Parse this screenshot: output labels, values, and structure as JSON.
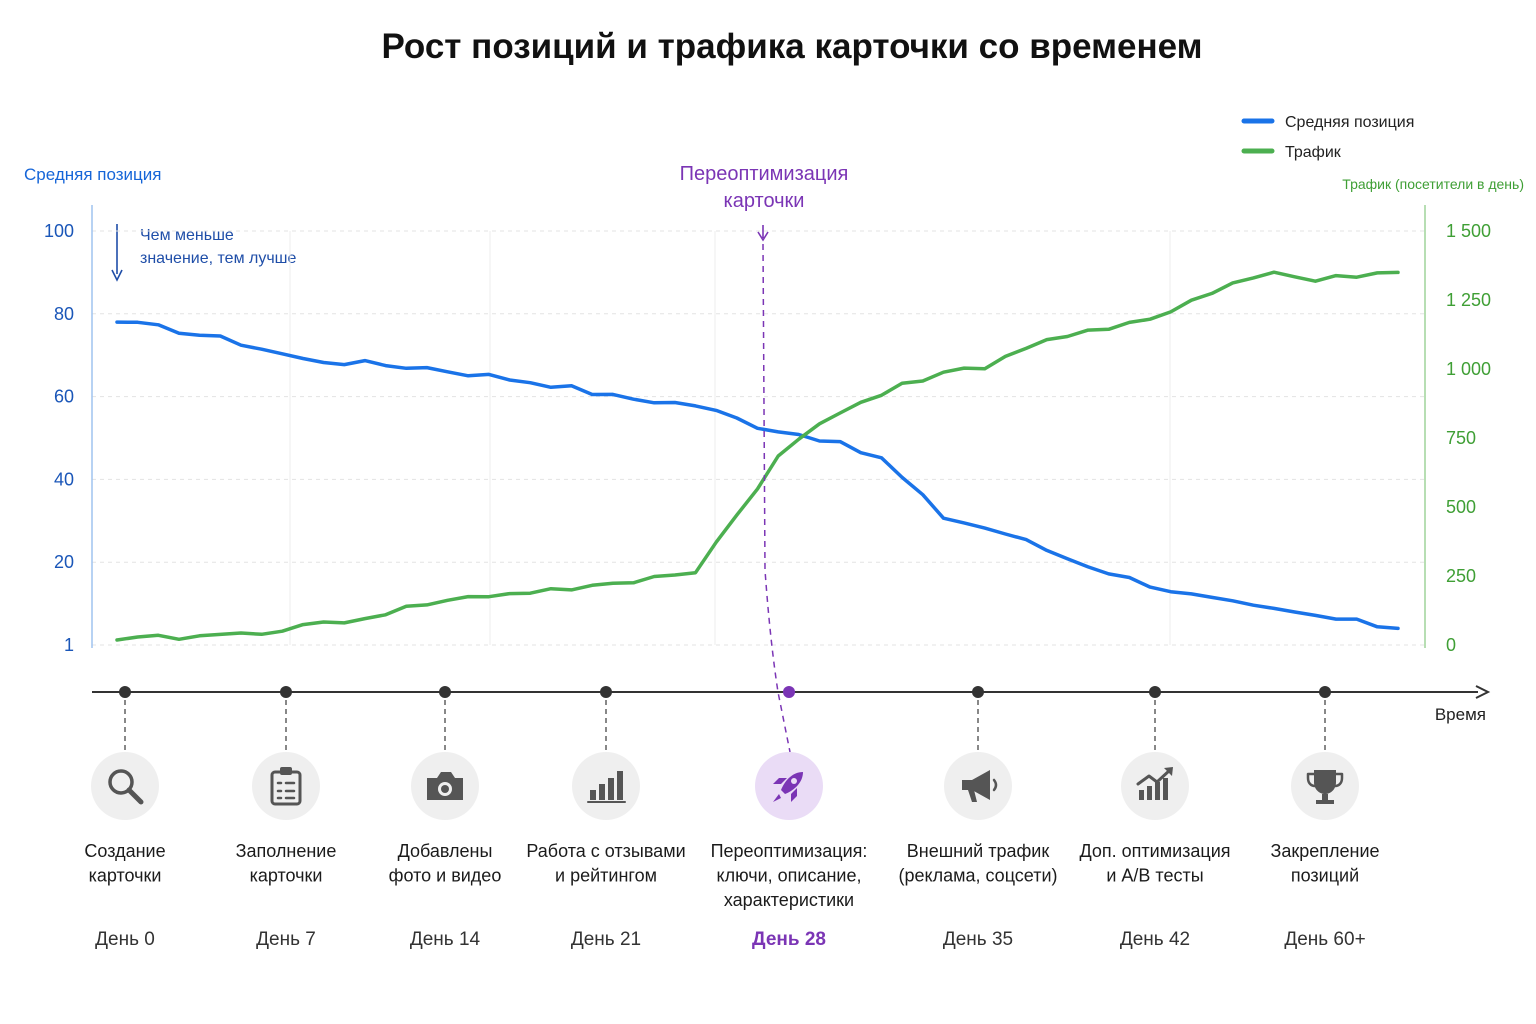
{
  "title": "Рост позиций и трафика карточки со временем",
  "colors": {
    "position": "#1a73e8",
    "traffic": "#4caf50",
    "highlight": "#7b35b5",
    "axis_left": "#1565d8",
    "axis_right": "#3f9f35",
    "timeline": "#333333",
    "icon_bg": "#efefef",
    "icon_bg_highlight": "#eadcf6",
    "icon": "#555555"
  },
  "chart_data": {
    "type": "line",
    "title": "Рост позиций и трафика карточки со временем",
    "ylabel": "Средняя позиция",
    "y2label": "Трафик (посетители в день)",
    "xlabel": "Время",
    "ylim": [
      0,
      100
    ],
    "y2lim": [
      0,
      1500
    ],
    "yticks": [
      {
        "v": 0,
        "label": "1"
      },
      {
        "v": 20,
        "label": "20"
      },
      {
        "v": 40,
        "label": "40"
      },
      {
        "v": 60,
        "label": "60"
      },
      {
        "v": 80,
        "label": "80"
      },
      {
        "v": 100,
        "label": "100"
      }
    ],
    "y2ticks": [
      {
        "v": 0,
        "label": "0"
      },
      {
        "v": 250,
        "label": "250"
      },
      {
        "v": 500,
        "label": "500"
      },
      {
        "v": 750,
        "label": "750"
      },
      {
        "v": 1000,
        "label": "1 000"
      },
      {
        "v": 1250,
        "label": "1 250"
      },
      {
        "v": 1500,
        "label": "1 500"
      }
    ],
    "legend": {
      "placement": "top-right"
    },
    "grid": true,
    "series": [
      {
        "name": "Средняя позиция",
        "axis": "left",
        "x": [
          0,
          3,
          6,
          9,
          12,
          15,
          18,
          21,
          24,
          28,
          31,
          34,
          37,
          40,
          43,
          46,
          49,
          52,
          55,
          58,
          62
        ],
        "values": [
          78,
          76,
          73,
          69,
          68,
          67,
          65,
          63,
          60,
          58,
          53,
          50,
          45,
          31,
          27,
          21,
          16,
          12,
          9,
          7,
          4
        ]
      },
      {
        "name": "Трафик",
        "axis": "right",
        "x": [
          0,
          3,
          6,
          9,
          12,
          15,
          18,
          21,
          24,
          28,
          30,
          32,
          34,
          36,
          38,
          40,
          42,
          44,
          46,
          48,
          50,
          52,
          54,
          56,
          58,
          60,
          62
        ],
        "values": [
          18,
          28,
          40,
          65,
          100,
          150,
          180,
          200,
          215,
          270,
          470,
          680,
          800,
          880,
          950,
          980,
          1010,
          1080,
          1120,
          1140,
          1180,
          1250,
          1310,
          1350,
          1320,
          1340,
          1350
        ]
      }
    ],
    "annotation": {
      "x": 28,
      "text": [
        "Переоптимизация",
        "карточки"
      ]
    }
  },
  "note": {
    "line1": "Чем меньше",
    "line2": "значение, тем лучше"
  },
  "milestones": [
    {
      "icon": "search-icon",
      "label": [
        "Создание",
        "карточки"
      ],
      "day": "День 0"
    },
    {
      "icon": "clipboard-icon",
      "label": [
        "Заполнение",
        "карточки"
      ],
      "day": "День 7"
    },
    {
      "icon": "camera-icon",
      "label": [
        "Добавлены",
        "фото и видео"
      ],
      "day": "День 14"
    },
    {
      "icon": "bar-chart-icon",
      "label": [
        "Работа с отзывами",
        "и рейтингом"
      ],
      "day": "День 21"
    },
    {
      "icon": "rocket-icon",
      "label": [
        "Переоптимизация:",
        "ключи, описание,",
        "характеристики"
      ],
      "day": "День 28",
      "highlight": true
    },
    {
      "icon": "megaphone-icon",
      "label": [
        "Внешний трафик",
        "(реклама, соцсети)"
      ],
      "day": "День 35"
    },
    {
      "icon": "trend-up-icon",
      "label": [
        "Доп. оптимизация",
        "и А/В тесты"
      ],
      "day": "День 42"
    },
    {
      "icon": "trophy-icon",
      "label": [
        "Закрепление",
        "позиций"
      ],
      "day": "День 60+"
    }
  ]
}
